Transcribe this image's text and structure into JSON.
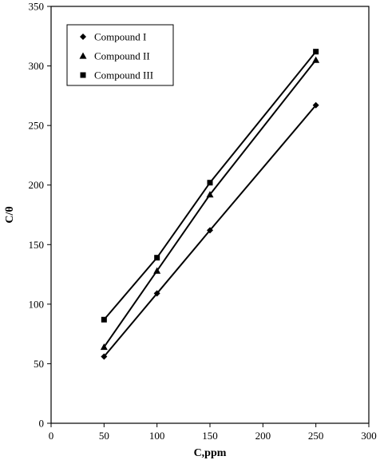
{
  "chart_data": {
    "type": "line",
    "xlabel": "C,ppm",
    "ylabel": "C/θ",
    "xlim": [
      0,
      300
    ],
    "ylim": [
      0,
      350
    ],
    "xticks": [
      0,
      50,
      100,
      150,
      200,
      250,
      300
    ],
    "yticks": [
      0,
      50,
      100,
      150,
      200,
      250,
      300,
      350
    ],
    "x_tick_labels": [
      "0",
      "50",
      "100",
      "150",
      "200",
      "250",
      "300"
    ],
    "y_tick_labels": [
      "0",
      "50",
      "100",
      "150",
      "200",
      "250",
      "300",
      "350"
    ],
    "grid": false,
    "legend_position": "top-left",
    "series": [
      {
        "name": "Compound I",
        "marker": "diamond",
        "x": [
          50,
          100,
          150,
          250
        ],
        "y": [
          56,
          109,
          162,
          267
        ]
      },
      {
        "name": "Compound II",
        "marker": "triangle",
        "x": [
          50,
          100,
          150,
          250
        ],
        "y": [
          64,
          128,
          192,
          305
        ]
      },
      {
        "name": "Compound III",
        "marker": "square",
        "x": [
          50,
          100,
          150,
          250
        ],
        "y": [
          87,
          139,
          202,
          312
        ]
      }
    ]
  }
}
